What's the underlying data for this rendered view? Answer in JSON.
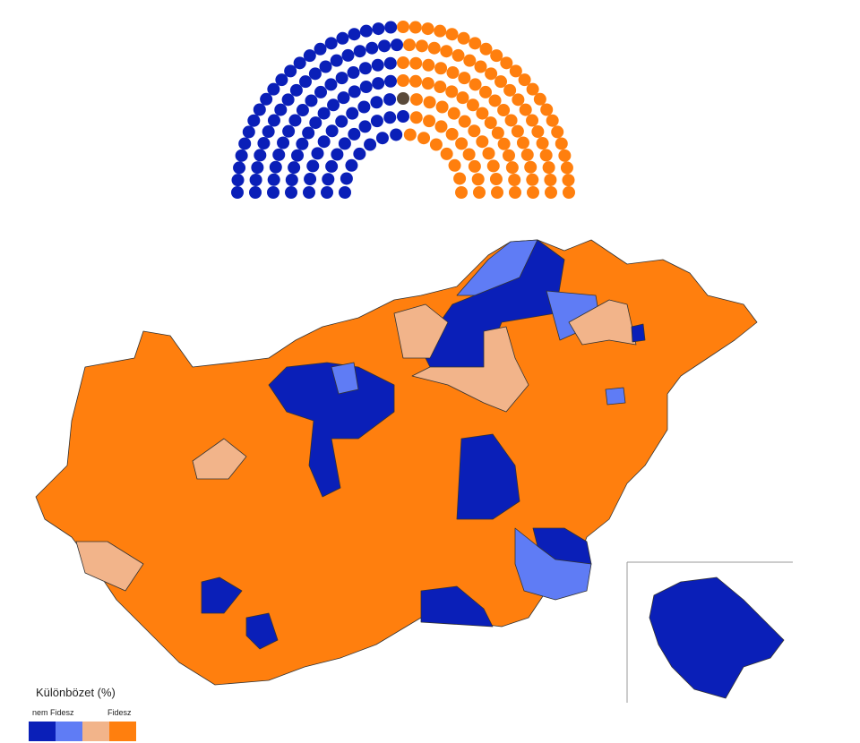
{
  "seats": [
    {
      "color": "#0a1fb8",
      "count": 98
    },
    {
      "color": "#5a4a3a",
      "count": 1
    },
    {
      "color": "#ff7f0e",
      "count": 100
    }
  ],
  "legend": {
    "title": "Különbözet (%)",
    "labels": [
      "nem Fidesz",
      "Fidesz"
    ],
    "colors": [
      "#0a1fb8",
      "#5f7cf5",
      "#f2b48a",
      "#ff7f0e"
    ]
  }
}
